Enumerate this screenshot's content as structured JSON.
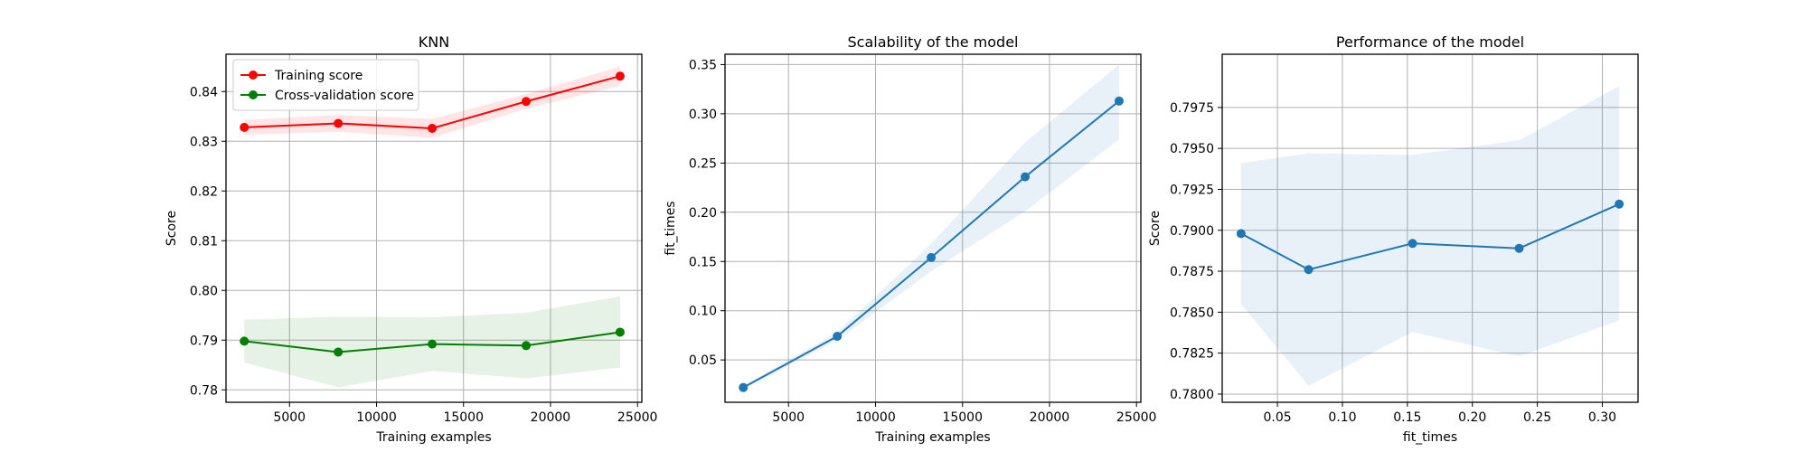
{
  "chart_data": [
    {
      "type": "line",
      "title": "KNN",
      "xlabel": "Training examples",
      "ylabel": "Score",
      "grid": true,
      "legend_position": "top-left",
      "xlim": [
        1350,
        25250
      ],
      "ylim": [
        0.7775,
        0.8475
      ],
      "xticks": [
        5000,
        10000,
        15000,
        20000,
        25000
      ],
      "xtick_labels": [
        "5000",
        "10000",
        "15000",
        "20000",
        "25000"
      ],
      "yticks": [
        0.78,
        0.79,
        0.8,
        0.81,
        0.82,
        0.83,
        0.84
      ],
      "ytick_labels": [
        "0.78",
        "0.79",
        "0.80",
        "0.81",
        "0.82",
        "0.83",
        "0.84"
      ],
      "x": [
        2400,
        7800,
        13200,
        18600,
        24000
      ],
      "series": [
        {
          "name": "Training score",
          "color": "#ff0000",
          "values": [
            0.8328,
            0.8336,
            0.8326,
            0.838,
            0.8431
          ],
          "band_upper": [
            0.8343,
            0.8353,
            0.8345,
            0.8395,
            0.845
          ],
          "band_lower": [
            0.8313,
            0.8319,
            0.8307,
            0.8365,
            0.8412
          ]
        },
        {
          "name": "Cross-validation score",
          "color": "#008000",
          "values": [
            0.7898,
            0.7876,
            0.7892,
            0.7889,
            0.7916
          ],
          "band_upper": [
            0.7941,
            0.7947,
            0.7946,
            0.7955,
            0.7988
          ],
          "band_lower": [
            0.7855,
            0.7805,
            0.7838,
            0.7823,
            0.7845
          ]
        }
      ]
    },
    {
      "type": "line",
      "title": "Scalability of the model",
      "xlabel": "Training examples",
      "ylabel": "fit_times",
      "grid": true,
      "xlim": [
        1350,
        25250
      ],
      "ylim": [
        0.007,
        0.3605
      ],
      "xticks": [
        5000,
        10000,
        15000,
        20000,
        25000
      ],
      "xtick_labels": [
        "5000",
        "10000",
        "15000",
        "20000",
        "25000"
      ],
      "yticks": [
        0.05,
        0.1,
        0.15,
        0.2,
        0.25,
        0.3,
        0.35
      ],
      "ytick_labels": [
        "0.05",
        "0.10",
        "0.15",
        "0.20",
        "0.25",
        "0.30",
        "0.35"
      ],
      "x": [
        2400,
        7800,
        13200,
        18600,
        24000
      ],
      "series": [
        {
          "color": "#1f77b4",
          "values": [
            0.022,
            0.074,
            0.154,
            0.236,
            0.313
          ],
          "band_upper": [
            0.024,
            0.078,
            0.168,
            0.271,
            0.35
          ],
          "band_lower": [
            0.02,
            0.07,
            0.14,
            0.201,
            0.274
          ]
        }
      ]
    },
    {
      "type": "line",
      "title": "Performance of the model",
      "xlabel": "fit_times",
      "ylabel": "Score",
      "grid": true,
      "xlim": [
        0.0075,
        0.3275
      ],
      "ylim": [
        0.7795,
        0.80075
      ],
      "xticks": [
        0.05,
        0.1,
        0.15,
        0.2,
        0.25,
        0.3
      ],
      "xtick_labels": [
        "0.05",
        "0.10",
        "0.15",
        "0.20",
        "0.25",
        "0.30"
      ],
      "yticks": [
        0.78,
        0.7825,
        0.785,
        0.7875,
        0.79,
        0.7925,
        0.795,
        0.7975
      ],
      "ytick_labels": [
        "0.7800",
        "0.7825",
        "0.7850",
        "0.7875",
        "0.7900",
        "0.7925",
        "0.7950",
        "0.7975"
      ],
      "x": [
        0.022,
        0.074,
        0.154,
        0.236,
        0.313
      ],
      "series": [
        {
          "color": "#1f77b4",
          "values": [
            0.7898,
            0.7876,
            0.7892,
            0.7889,
            0.7916
          ],
          "band_upper": [
            0.7941,
            0.7947,
            0.7946,
            0.7955,
            0.7988
          ],
          "band_lower": [
            0.7855,
            0.7805,
            0.7838,
            0.7823,
            0.7845
          ]
        }
      ]
    }
  ]
}
